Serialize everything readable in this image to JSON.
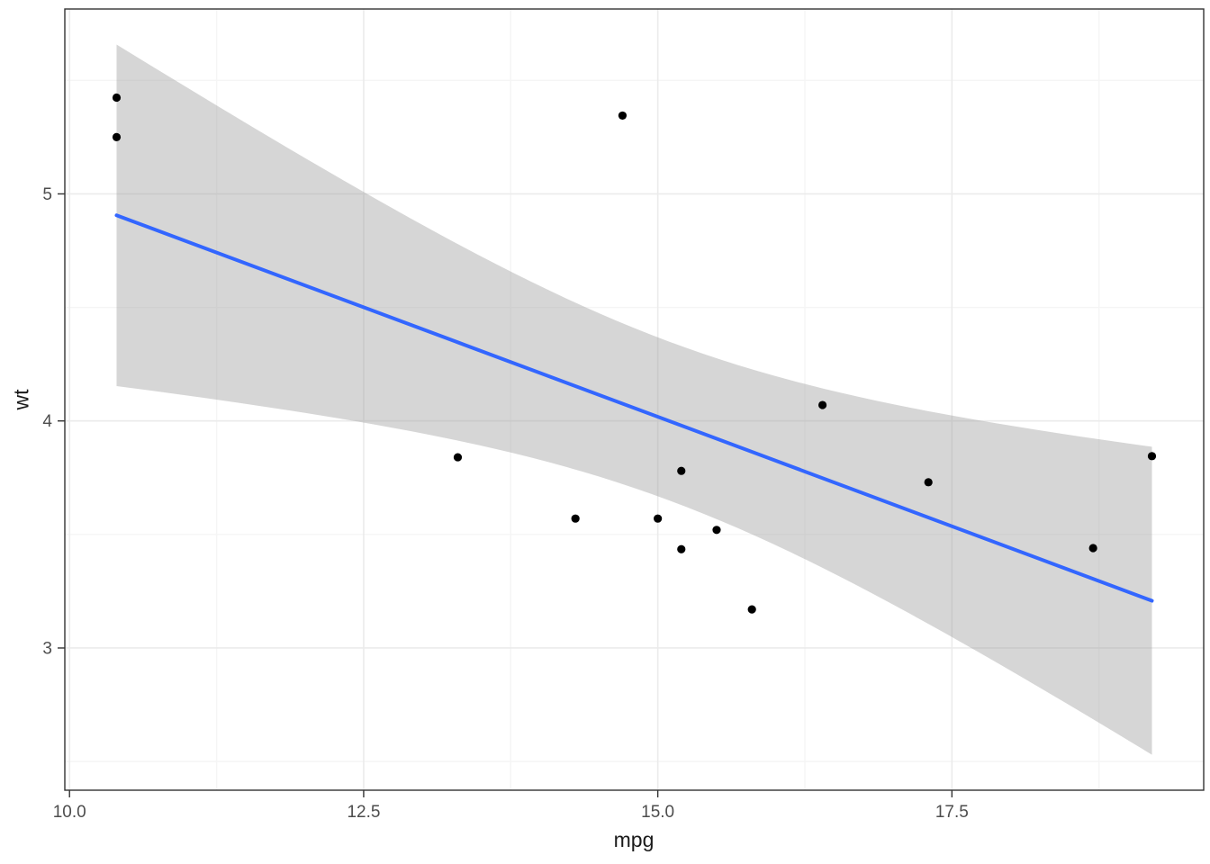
{
  "chart_data": {
    "type": "scatter",
    "title": "",
    "xlabel": "mpg",
    "ylabel": "wt",
    "xlim": [
      9.96,
      19.64
    ],
    "ylim": [
      2.3736,
      5.8144
    ],
    "x_ticks": [
      10.0,
      12.5,
      15.0,
      17.5
    ],
    "x_tick_labels": [
      "10.0",
      "12.5",
      "15.0",
      "17.5"
    ],
    "y_ticks": [
      3,
      4,
      5
    ],
    "y_tick_labels": [
      "3",
      "4",
      "5"
    ],
    "x_minor_ticks": [
      11.25,
      13.75,
      16.25,
      18.75
    ],
    "y_minor_ticks": [
      2.5,
      3.5,
      4.5,
      5.5
    ],
    "grid": true,
    "legend": "none",
    "points": [
      [
        18.7,
        3.44
      ],
      [
        14.3,
        3.57
      ],
      [
        16.4,
        4.07
      ],
      [
        17.3,
        3.73
      ],
      [
        15.2,
        3.78
      ],
      [
        10.4,
        5.25
      ],
      [
        10.4,
        5.424
      ],
      [
        14.7,
        5.345
      ],
      [
        15.5,
        3.52
      ],
      [
        15.2,
        3.435
      ],
      [
        13.3,
        3.84
      ],
      [
        19.2,
        3.845
      ],
      [
        15.8,
        3.17
      ],
      [
        15.0,
        3.57
      ]
    ],
    "smooth": {
      "method": "lm",
      "intercept": 6.9121,
      "slope": -0.19292,
      "x_start": 10.4,
      "x_end": 19.2,
      "ci_level": 0.95,
      "ci_t": 2.1788,
      "residual_se": 0.60042,
      "n": 14,
      "x_mean": 15.1,
      "sxx": 85.2
    },
    "colors": {
      "point": "#000000",
      "line": "#3366FF",
      "ribbon": "rgba(153,153,153,0.4)",
      "grid_major": "#EBEBEB",
      "grid_minor": "#F5F5F5",
      "panel_border": "#333333",
      "tick_mark": "#333333",
      "tick_label": "#4D4D4D",
      "panel_background": "#FFFFFF"
    }
  }
}
